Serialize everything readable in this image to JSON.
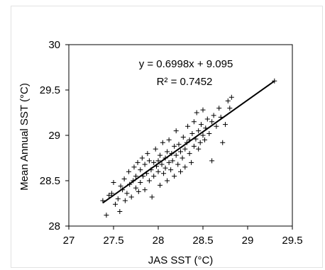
{
  "chart_data": {
    "type": "scatter",
    "title": "",
    "xlabel": "JAS SST (°C)",
    "ylabel": "Mean Annual SST (°C)",
    "xlim": [
      27,
      29.5
    ],
    "ylim": [
      28,
      30
    ],
    "xticks": [
      "27",
      "27.5",
      "28",
      "28.5",
      "29",
      "29.5"
    ],
    "yticks": [
      "28",
      "28.5",
      "29",
      "29.5",
      "30"
    ],
    "grid": false,
    "marker": "+",
    "equation": "y = 0.6998x + 9.095",
    "r_squared": "R² = 0.7452",
    "trendline": {
      "slope": 0.6998,
      "intercept": 9.095,
      "x_range": [
        27.38,
        29.3
      ]
    },
    "points": [
      [
        27.38,
        28.28
      ],
      [
        27.42,
        28.12
      ],
      [
        27.45,
        28.34
      ],
      [
        27.48,
        28.36
      ],
      [
        27.5,
        28.48
      ],
      [
        27.52,
        28.24
      ],
      [
        27.55,
        28.3
      ],
      [
        27.57,
        28.16
      ],
      [
        27.58,
        28.44
      ],
      [
        27.6,
        28.4
      ],
      [
        27.62,
        28.52
      ],
      [
        27.63,
        28.28
      ],
      [
        27.65,
        28.36
      ],
      [
        27.67,
        28.6
      ],
      [
        27.68,
        28.46
      ],
      [
        27.7,
        28.32
      ],
      [
        27.72,
        28.5
      ],
      [
        27.73,
        28.65
      ],
      [
        27.75,
        28.42
      ],
      [
        27.75,
        28.55
      ],
      [
        27.77,
        28.7
      ],
      [
        27.78,
        28.38
      ],
      [
        27.8,
        28.48
      ],
      [
        27.8,
        28.62
      ],
      [
        27.82,
        28.75
      ],
      [
        27.83,
        28.55
      ],
      [
        27.85,
        28.4
      ],
      [
        27.85,
        28.68
      ],
      [
        27.87,
        28.58
      ],
      [
        27.88,
        28.8
      ],
      [
        27.9,
        28.5
      ],
      [
        27.9,
        28.72
      ],
      [
        27.92,
        28.62
      ],
      [
        27.93,
        28.32
      ],
      [
        27.95,
        28.7
      ],
      [
        27.95,
        28.55
      ],
      [
        27.97,
        28.85
      ],
      [
        27.98,
        28.66
      ],
      [
        28.0,
        28.72
      ],
      [
        28.0,
        28.6
      ],
      [
        28.02,
        28.45
      ],
      [
        28.02,
        28.78
      ],
      [
        28.04,
        28.68
      ],
      [
        28.05,
        28.92
      ],
      [
        28.06,
        28.58
      ],
      [
        28.08,
        28.75
      ],
      [
        28.08,
        28.64
      ],
      [
        28.1,
        28.82
      ],
      [
        28.1,
        28.5
      ],
      [
        28.12,
        28.7
      ],
      [
        28.12,
        28.95
      ],
      [
        28.14,
        28.62
      ],
      [
        28.15,
        28.8
      ],
      [
        28.16,
        28.72
      ],
      [
        28.18,
        28.88
      ],
      [
        28.18,
        28.55
      ],
      [
        28.2,
        28.78
      ],
      [
        28.2,
        29.05
      ],
      [
        28.22,
        28.68
      ],
      [
        28.23,
        28.9
      ],
      [
        28.25,
        28.6
      ],
      [
        28.25,
        28.82
      ],
      [
        28.27,
        28.75
      ],
      [
        28.28,
        28.98
      ],
      [
        28.3,
        28.85
      ],
      [
        28.3,
        28.65
      ],
      [
        28.32,
        28.92
      ],
      [
        28.33,
        29.1
      ],
      [
        28.35,
        28.8
      ],
      [
        28.35,
        28.95
      ],
      [
        28.37,
        28.7
      ],
      [
        28.38,
        29.02
      ],
      [
        28.4,
        28.88
      ],
      [
        28.4,
        29.15
      ],
      [
        28.42,
        28.96
      ],
      [
        28.43,
        29.25
      ],
      [
        28.45,
        28.85
      ],
      [
        28.45,
        29.05
      ],
      [
        28.47,
        28.92
      ],
      [
        28.48,
        29.12
      ],
      [
        28.5,
        29.0
      ],
      [
        28.5,
        29.28
      ],
      [
        28.52,
        28.95
      ],
      [
        28.53,
        29.08
      ],
      [
        28.55,
        29.18
      ],
      [
        28.57,
        29.02
      ],
      [
        28.6,
        28.72
      ],
      [
        28.6,
        29.15
      ],
      [
        28.62,
        29.22
      ],
      [
        28.65,
        29.1
      ],
      [
        28.68,
        29.3
      ],
      [
        28.7,
        29.2
      ],
      [
        28.72,
        28.92
      ],
      [
        28.75,
        29.12
      ],
      [
        28.78,
        29.38
      ],
      [
        28.8,
        29.3
      ],
      [
        28.82,
        29.42
      ],
      [
        29.3,
        29.6
      ]
    ]
  }
}
